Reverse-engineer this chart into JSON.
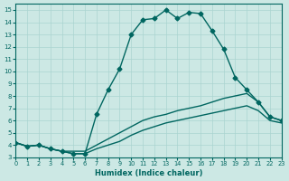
{
  "xlabel": "Humidex (Indice chaleur)",
  "ylabel": "",
  "bg_color": "#cce8e4",
  "grid_color": "#aad4d0",
  "line_color": "#006660",
  "xlim": [
    0,
    23
  ],
  "ylim": [
    3,
    15.5
  ],
  "xticks": [
    0,
    1,
    2,
    3,
    4,
    5,
    6,
    7,
    8,
    9,
    10,
    11,
    12,
    13,
    14,
    15,
    16,
    17,
    18,
    19,
    20,
    21,
    22,
    23
  ],
  "yticks": [
    3,
    4,
    5,
    6,
    7,
    8,
    9,
    10,
    11,
    12,
    13,
    14,
    15
  ],
  "series": [
    {
      "x": [
        0,
        1,
        2,
        3,
        4,
        5,
        6,
        7,
        8,
        9,
        10,
        11,
        12,
        13,
        14,
        15,
        16,
        17,
        18,
        19,
        20,
        21,
        22,
        23
      ],
      "y": [
        4.2,
        3.9,
        4.0,
        3.7,
        3.5,
        3.3,
        3.3,
        6.5,
        8.5,
        10.2,
        13.0,
        14.2,
        14.3,
        15.0,
        14.3,
        14.8,
        14.7,
        13.3,
        11.8,
        9.5,
        8.5,
        7.5,
        6.3,
        6.0
      ],
      "marker": "D",
      "markersize": 2.5,
      "linewidth": 1.0
    },
    {
      "x": [
        0,
        1,
        2,
        3,
        4,
        5,
        6,
        7,
        8,
        9,
        10,
        11,
        12,
        13,
        14,
        15,
        16,
        17,
        18,
        19,
        20,
        21,
        22,
        23
      ],
      "y": [
        4.2,
        3.9,
        4.0,
        3.7,
        3.5,
        3.5,
        3.5,
        4.0,
        4.5,
        5.0,
        5.5,
        6.0,
        6.3,
        6.5,
        6.8,
        7.0,
        7.2,
        7.5,
        7.8,
        8.0,
        8.2,
        7.5,
        6.3,
        6.0
      ],
      "marker": null,
      "markersize": 0,
      "linewidth": 1.0
    },
    {
      "x": [
        0,
        1,
        2,
        3,
        4,
        5,
        6,
        7,
        8,
        9,
        10,
        11,
        12,
        13,
        14,
        15,
        16,
        17,
        18,
        19,
        20,
        21,
        22,
        23
      ],
      "y": [
        4.2,
        3.9,
        4.0,
        3.7,
        3.5,
        3.3,
        3.3,
        3.7,
        4.0,
        4.3,
        4.8,
        5.2,
        5.5,
        5.8,
        6.0,
        6.2,
        6.4,
        6.6,
        6.8,
        7.0,
        7.2,
        6.8,
        6.0,
        5.8
      ],
      "marker": null,
      "markersize": 0,
      "linewidth": 1.0
    }
  ]
}
